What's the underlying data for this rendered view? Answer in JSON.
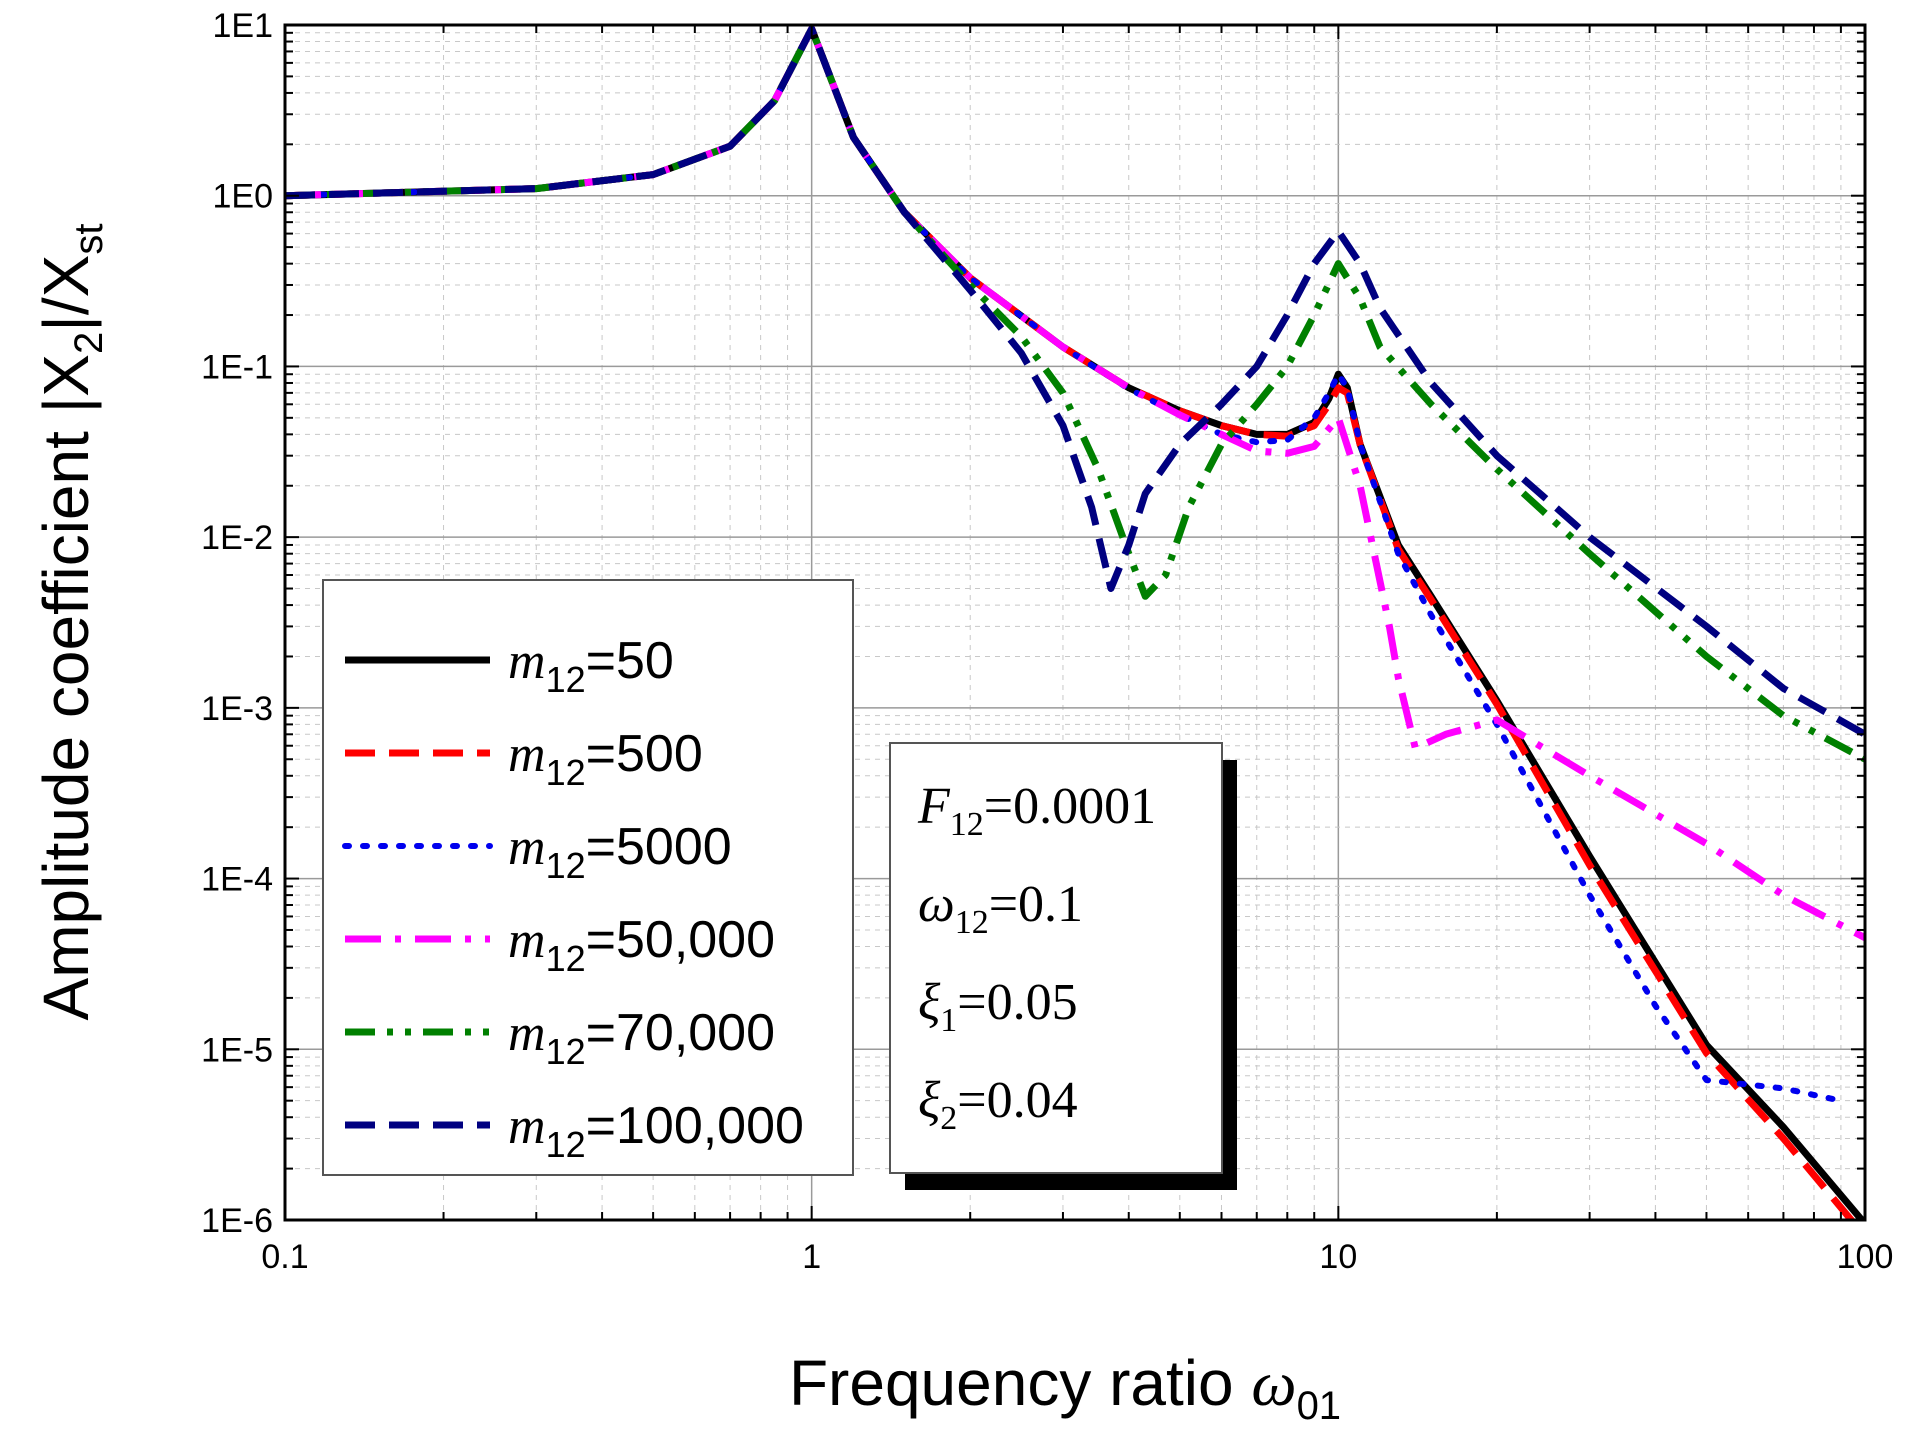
{
  "chart_data": {
    "type": "line",
    "xscale": "log",
    "yscale": "log",
    "xlim": [
      0.1,
      100
    ],
    "ylim": [
      1e-06,
      10
    ],
    "x_ticks": [
      {
        "value": 0.1,
        "label": "0.1"
      },
      {
        "value": 1,
        "label": "1"
      },
      {
        "value": 10,
        "label": "10"
      },
      {
        "value": 100,
        "label": "100"
      }
    ],
    "y_ticks": [
      {
        "value": 10,
        "label": "1E1"
      },
      {
        "value": 1,
        "label": "1E0"
      },
      {
        "value": 0.1,
        "label": "1E-1"
      },
      {
        "value": 0.01,
        "label": "1E-2"
      },
      {
        "value": 0.001,
        "label": "1E-3"
      },
      {
        "value": 0.0001,
        "label": "1E-4"
      },
      {
        "value": 1e-05,
        "label": "1E-5"
      },
      {
        "value": 1e-06,
        "label": "1E-6"
      }
    ],
    "xlabel": {
      "text": "Frequency ratio ",
      "symbol": "ω",
      "sub": "01"
    },
    "ylabel": {
      "prefix": "Amplitude coefficient |X",
      "sub1": "2",
      "mid": "|/X",
      "sub2": "st"
    },
    "grid": true,
    "legend_position": "lower-left",
    "series": [
      {
        "name": "m12=50",
        "label_sub": "12",
        "label_value": "=50",
        "color": "#000000",
        "style": "solid",
        "points": [
          [
            0.1,
            1.0
          ],
          [
            0.3,
            1.1
          ],
          [
            0.5,
            1.33
          ],
          [
            0.7,
            1.95
          ],
          [
            0.85,
            3.6
          ],
          [
            1.0,
            9.5
          ],
          [
            1.2,
            2.2
          ],
          [
            1.5,
            0.8
          ],
          [
            2,
            0.33
          ],
          [
            3,
            0.13
          ],
          [
            4,
            0.075
          ],
          [
            5,
            0.055
          ],
          [
            6,
            0.045
          ],
          [
            7,
            0.04
          ],
          [
            8,
            0.04
          ],
          [
            9,
            0.047
          ],
          [
            9.6,
            0.065
          ],
          [
            10,
            0.09
          ],
          [
            10.4,
            0.075
          ],
          [
            11,
            0.035
          ],
          [
            13,
            0.009
          ],
          [
            15,
            0.0045
          ],
          [
            20,
            0.0011
          ],
          [
            30,
            0.000135
          ],
          [
            50,
            1.06e-05
          ],
          [
            70,
            3.5e-06
          ],
          [
            100,
            9.5e-07
          ]
        ]
      },
      {
        "name": "m12=500",
        "label_sub": "12",
        "label_value": "=500",
        "color": "#ff0000",
        "style": "dashed",
        "points": [
          [
            0.1,
            1.0
          ],
          [
            0.3,
            1.1
          ],
          [
            0.5,
            1.33
          ],
          [
            0.7,
            1.95
          ],
          [
            0.85,
            3.6
          ],
          [
            1.0,
            9.5
          ],
          [
            1.2,
            2.2
          ],
          [
            1.5,
            0.8
          ],
          [
            2,
            0.33
          ],
          [
            3,
            0.13
          ],
          [
            4,
            0.075
          ],
          [
            5,
            0.055
          ],
          [
            6,
            0.045
          ],
          [
            7,
            0.04
          ],
          [
            8,
            0.039
          ],
          [
            9,
            0.045
          ],
          [
            9.6,
            0.06
          ],
          [
            10,
            0.075
          ],
          [
            10.4,
            0.07
          ],
          [
            11,
            0.035
          ],
          [
            13,
            0.0085
          ],
          [
            15,
            0.0043
          ],
          [
            20,
            0.00105
          ],
          [
            30,
            0.00012
          ],
          [
            50,
            9.5e-06
          ],
          [
            70,
            3e-06
          ],
          [
            100,
            8e-07
          ]
        ]
      },
      {
        "name": "m12=5000",
        "label_sub": "12",
        "label_value": "=5000",
        "color": "#0000ee",
        "style": "dotted",
        "points": [
          [
            0.1,
            1.0
          ],
          [
            0.3,
            1.1
          ],
          [
            0.5,
            1.33
          ],
          [
            0.7,
            1.95
          ],
          [
            0.85,
            3.6
          ],
          [
            1.0,
            9.5
          ],
          [
            1.2,
            2.2
          ],
          [
            1.5,
            0.8
          ],
          [
            2,
            0.33
          ],
          [
            3,
            0.13
          ],
          [
            4,
            0.074
          ],
          [
            5,
            0.052
          ],
          [
            6,
            0.04
          ],
          [
            7,
            0.036
          ],
          [
            8,
            0.037
          ],
          [
            9,
            0.05
          ],
          [
            9.6,
            0.07
          ],
          [
            10,
            0.09
          ],
          [
            10.4,
            0.075
          ],
          [
            11,
            0.035
          ],
          [
            13,
            0.008
          ],
          [
            15,
            0.0035
          ],
          [
            20,
            0.0008
          ],
          [
            30,
            8e-05
          ],
          [
            40,
            1.8e-05
          ],
          [
            50,
            6.6e-06
          ],
          [
            70,
            5.9e-06
          ],
          [
            90,
            5e-06
          ]
        ]
      },
      {
        "name": "m12=50,000",
        "label_sub": "12",
        "label_value": "=50,000",
        "color": "#ff00ff",
        "style": "dashdot",
        "points": [
          [
            0.1,
            1.0
          ],
          [
            0.3,
            1.1
          ],
          [
            0.5,
            1.33
          ],
          [
            0.7,
            1.95
          ],
          [
            0.85,
            3.6
          ],
          [
            1.0,
            9.5
          ],
          [
            1.2,
            2.2
          ],
          [
            1.5,
            0.8
          ],
          [
            2,
            0.33
          ],
          [
            3,
            0.13
          ],
          [
            4,
            0.075
          ],
          [
            5,
            0.052
          ],
          [
            6,
            0.04
          ],
          [
            7,
            0.032
          ],
          [
            8,
            0.031
          ],
          [
            9,
            0.034
          ],
          [
            10,
            0.05
          ],
          [
            11,
            0.02
          ],
          [
            12.5,
            0.003
          ],
          [
            13,
            0.0015
          ],
          [
            14,
            0.00058
          ],
          [
            16,
            0.0007
          ],
          [
            20,
            0.00085
          ],
          [
            30,
            0.0004
          ],
          [
            50,
            0.00016
          ],
          [
            70,
            8e-05
          ],
          [
            100,
            4.5e-05
          ]
        ]
      },
      {
        "name": "m12=70,000",
        "label_sub": "12",
        "label_value": "=70,000",
        "color": "#008000",
        "style": "dashdotdot",
        "points": [
          [
            0.1,
            1.0
          ],
          [
            0.3,
            1.1
          ],
          [
            0.5,
            1.33
          ],
          [
            0.7,
            1.95
          ],
          [
            0.85,
            3.6
          ],
          [
            1.0,
            9.5
          ],
          [
            1.2,
            2.2
          ],
          [
            1.5,
            0.8
          ],
          [
            2,
            0.3
          ],
          [
            2.5,
            0.15
          ],
          [
            3,
            0.07
          ],
          [
            3.5,
            0.025
          ],
          [
            4,
            0.008
          ],
          [
            4.3,
            0.0045
          ],
          [
            4.7,
            0.006
          ],
          [
            5.2,
            0.015
          ],
          [
            6,
            0.035
          ],
          [
            7,
            0.06
          ],
          [
            8,
            0.1
          ],
          [
            9,
            0.2
          ],
          [
            10,
            0.4
          ],
          [
            11,
            0.25
          ],
          [
            12,
            0.13
          ],
          [
            15,
            0.06
          ],
          [
            20,
            0.025
          ],
          [
            30,
            0.008
          ],
          [
            50,
            0.002
          ],
          [
            70,
            0.0009
          ],
          [
            100,
            0.0005
          ]
        ]
      },
      {
        "name": "m12=100,000",
        "label_sub": "12",
        "label_value": "=100,000",
        "color": "#000080",
        "style": "dashed",
        "points": [
          [
            0.1,
            1.0
          ],
          [
            0.3,
            1.1
          ],
          [
            0.5,
            1.33
          ],
          [
            0.7,
            1.95
          ],
          [
            0.85,
            3.6
          ],
          [
            1.0,
            9.5
          ],
          [
            1.2,
            2.2
          ],
          [
            1.5,
            0.8
          ],
          [
            2,
            0.28
          ],
          [
            2.5,
            0.12
          ],
          [
            3,
            0.045
          ],
          [
            3.4,
            0.015
          ],
          [
            3.7,
            0.005
          ],
          [
            4.0,
            0.009
          ],
          [
            4.3,
            0.018
          ],
          [
            5,
            0.035
          ],
          [
            6,
            0.06
          ],
          [
            7,
            0.1
          ],
          [
            8,
            0.2
          ],
          [
            9,
            0.4
          ],
          [
            10,
            0.62
          ],
          [
            11,
            0.4
          ],
          [
            12,
            0.22
          ],
          [
            15,
            0.08
          ],
          [
            20,
            0.03
          ],
          [
            30,
            0.01
          ],
          [
            50,
            0.003
          ],
          [
            70,
            0.0013
          ],
          [
            100,
            0.0007
          ]
        ]
      }
    ],
    "parameters": [
      {
        "symbol": "F",
        "sub": "12",
        "value": "=0.0001"
      },
      {
        "symbol": "ω",
        "sub": "12",
        "value": "=0.1"
      },
      {
        "symbol": "ξ",
        "sub": "1",
        "value": "=0.05"
      },
      {
        "symbol": "ξ",
        "sub": "2",
        "value": "=0.04"
      }
    ]
  }
}
